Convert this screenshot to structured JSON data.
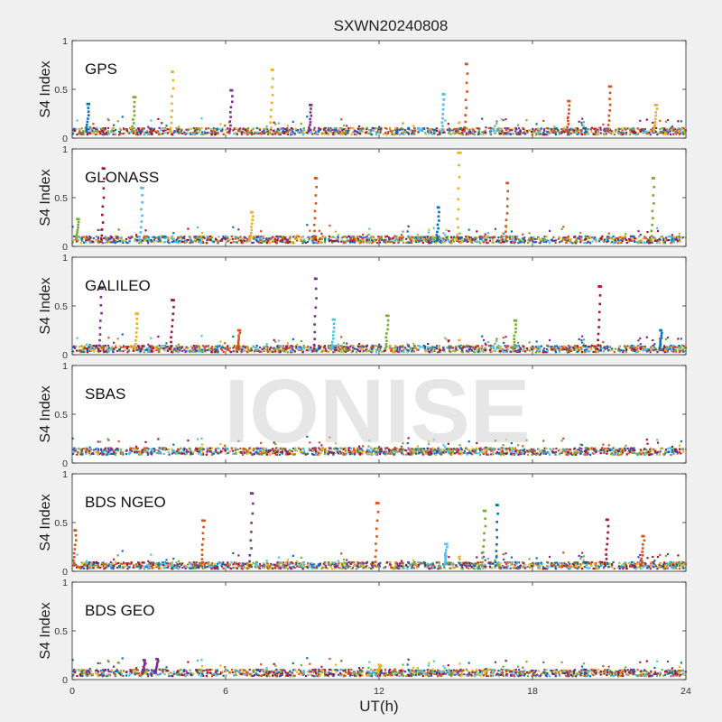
{
  "figure": {
    "title": "SXWN20240808",
    "watermark": "IONISE",
    "xlabel": "UT(h)",
    "ylabel": "S4 Index"
  },
  "chart_data": {
    "type": "scatter",
    "title": "SXWN20240808",
    "xlabel": "UT(h)",
    "ylabel": "S4 Index",
    "xlim": [
      0,
      24
    ],
    "ylim": [
      0,
      1
    ],
    "x_ticks": [
      0,
      6,
      12,
      18,
      24
    ],
    "y_ticks": [
      0,
      0.5,
      1
    ],
    "y_tick_labels": [
      "0",
      "0.5",
      "1"
    ],
    "grid": false,
    "legend": "none",
    "series_colors": [
      "#0072BD",
      "#D95319",
      "#EDB120",
      "#7E2F8E",
      "#77AC30",
      "#4DBEEE",
      "#A2142F"
    ],
    "panels": [
      {
        "label": "GPS",
        "baseline": 0.07,
        "spikes": [
          {
            "x": 0.6,
            "y": 0.35,
            "series": 0
          },
          {
            "x": 2.4,
            "y": 0.42,
            "series": 4
          },
          {
            "x": 3.9,
            "y": 0.68,
            "series": 2
          },
          {
            "x": 6.2,
            "y": 0.49,
            "series": 3
          },
          {
            "x": 7.8,
            "y": 0.7,
            "series": 2
          },
          {
            "x": 9.3,
            "y": 0.34,
            "series": 3
          },
          {
            "x": 14.5,
            "y": 0.45,
            "series": 5
          },
          {
            "x": 15.4,
            "y": 0.76,
            "series": 1
          },
          {
            "x": 19.4,
            "y": 0.38,
            "series": 1
          },
          {
            "x": 21.0,
            "y": 0.53,
            "series": 1
          },
          {
            "x": 22.8,
            "y": 0.34,
            "series": 2
          }
        ]
      },
      {
        "label": "GLONASS",
        "baseline": 0.07,
        "spikes": [
          {
            "x": 0.2,
            "y": 0.28,
            "series": 4
          },
          {
            "x": 1.2,
            "y": 0.8,
            "series": 6
          },
          {
            "x": 2.7,
            "y": 0.6,
            "series": 5
          },
          {
            "x": 7.0,
            "y": 0.35,
            "series": 2
          },
          {
            "x": 9.5,
            "y": 0.7,
            "series": 1
          },
          {
            "x": 14.3,
            "y": 0.4,
            "series": 0
          },
          {
            "x": 15.1,
            "y": 0.96,
            "series": 2
          },
          {
            "x": 17.0,
            "y": 0.65,
            "series": 1
          },
          {
            "x": 22.7,
            "y": 0.7,
            "series": 4
          }
        ]
      },
      {
        "label": "GALILEO",
        "baseline": 0.06,
        "spikes": [
          {
            "x": 1.1,
            "y": 0.68,
            "series": 3
          },
          {
            "x": 2.5,
            "y": 0.42,
            "series": 2
          },
          {
            "x": 3.9,
            "y": 0.56,
            "series": 6
          },
          {
            "x": 6.5,
            "y": 0.25,
            "series": 1
          },
          {
            "x": 9.5,
            "y": 0.78,
            "series": 3
          },
          {
            "x": 10.2,
            "y": 0.36,
            "series": 5
          },
          {
            "x": 12.3,
            "y": 0.4,
            "series": 4
          },
          {
            "x": 17.3,
            "y": 0.35,
            "series": 4
          },
          {
            "x": 20.6,
            "y": 0.7,
            "series": 6
          },
          {
            "x": 23.0,
            "y": 0.25,
            "series": 0
          }
        ]
      },
      {
        "label": "SBAS",
        "baseline": 0.12,
        "spikes": []
      },
      {
        "label": "BDS NGEO",
        "baseline": 0.06,
        "spikes": [
          {
            "x": 0.1,
            "y": 0.42,
            "series": 1
          },
          {
            "x": 5.1,
            "y": 0.52,
            "series": 1
          },
          {
            "x": 7.0,
            "y": 0.8,
            "series": 3
          },
          {
            "x": 11.9,
            "y": 0.7,
            "series": 1
          },
          {
            "x": 14.6,
            "y": 0.28,
            "series": 5
          },
          {
            "x": 16.1,
            "y": 0.62,
            "series": 4
          },
          {
            "x": 16.6,
            "y": 0.68,
            "series": 0
          },
          {
            "x": 20.9,
            "y": 0.53,
            "series": 6
          },
          {
            "x": 22.3,
            "y": 0.36,
            "series": 1
          }
        ]
      },
      {
        "label": "BDS GEO",
        "baseline": 0.07,
        "spikes": [
          {
            "x": 2.8,
            "y": 0.2,
            "series": 3
          },
          {
            "x": 3.3,
            "y": 0.21,
            "series": 3
          },
          {
            "x": 12.0,
            "y": 0.15,
            "series": 2
          }
        ]
      }
    ]
  }
}
